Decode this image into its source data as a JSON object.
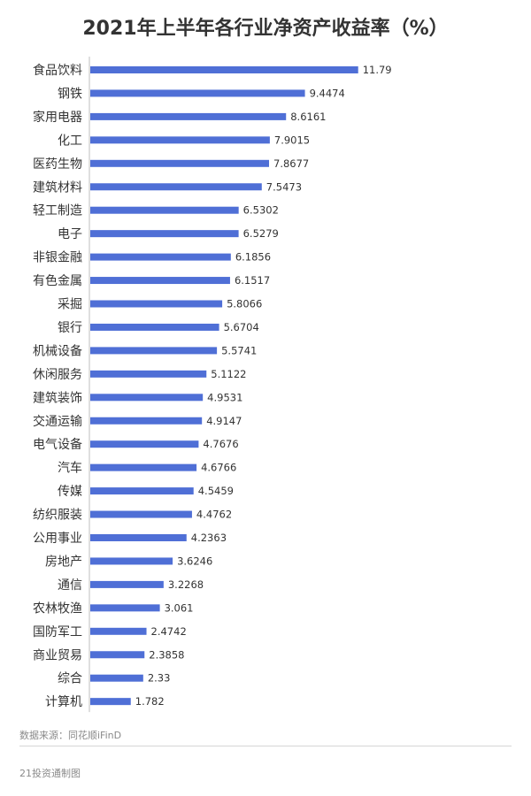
{
  "chart_data": {
    "type": "bar",
    "orientation": "horizontal",
    "title": "2021年上半年各行业净资产收益率（%）",
    "categories": [
      "食品饮料",
      "钢铁",
      "家用电器",
      "化工",
      "医药生物",
      "建筑材料",
      "轻工制造",
      "电子",
      "非银金融",
      "有色金属",
      "采掘",
      "银行",
      "机械设备",
      "休闲服务",
      "建筑装饰",
      "交通运输",
      "电气设备",
      "汽车",
      "传媒",
      "纺织服装",
      "公用事业",
      "房地产",
      "通信",
      "农林牧渔",
      "国防军工",
      "商业贸易",
      "综合",
      "计算机"
    ],
    "values": [
      11.79,
      9.4474,
      8.6161,
      7.9015,
      7.8677,
      7.5473,
      6.5302,
      6.5279,
      6.1856,
      6.1517,
      5.8066,
      5.6704,
      5.5741,
      5.1122,
      4.9531,
      4.9147,
      4.7676,
      4.6766,
      4.5459,
      4.4762,
      4.2363,
      3.6246,
      3.2268,
      3.061,
      2.4742,
      2.3858,
      2.33,
      1.782
    ],
    "value_labels": [
      "11.79",
      "9.4474",
      "8.6161",
      "7.9015",
      "7.8677",
      "7.5473",
      "6.5302",
      "6.5279",
      "6.1856",
      "6.1517",
      "5.8066",
      "5.6704",
      "5.5741",
      "5.1122",
      "4.9531",
      "4.9147",
      "4.7676",
      "4.6766",
      "4.5459",
      "4.4762",
      "4.2363",
      "3.6246",
      "3.2268",
      "3.061",
      "2.4742",
      "2.3858",
      "2.33",
      "1.782"
    ],
    "xlim": [
      0,
      14.8
    ],
    "grid": false,
    "bar_color": "#4f6fd6"
  },
  "footer": {
    "source": "数据来源：同花顺iFinD",
    "credit": "21投资通制图"
  }
}
